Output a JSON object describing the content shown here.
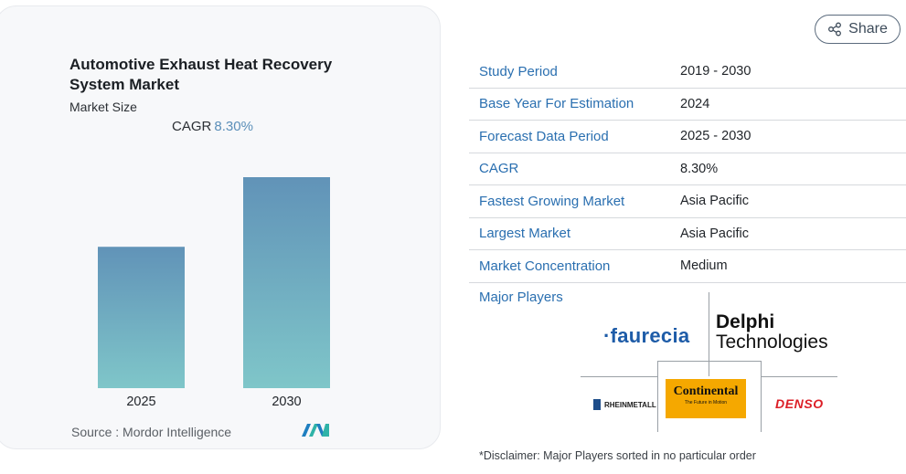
{
  "chart_title": "Automotive Exhaust Heat Recovery System Market",
  "chart_subtitle": "Market Size",
  "cagr_label": "CAGR",
  "cagr_value": "8.30%",
  "source_text": "Source :  Mordor Intelligence",
  "chart_data": {
    "type": "bar",
    "title": "Automotive Exhaust Heat Recovery System Market",
    "subtitle": "Market Size",
    "categories": [
      "2025",
      "2030"
    ],
    "values": [
      0.67,
      1.0
    ],
    "annotation": "CAGR 8.30%",
    "xlabel": "",
    "ylabel": "",
    "grid": false,
    "bar_color_top": "#6193b8",
    "bar_color_bottom": "#7fc6c9"
  },
  "share_label": "Share",
  "info_rows": [
    {
      "key": "Study Period",
      "value": "2019 - 2030"
    },
    {
      "key": "Base Year For Estimation",
      "value": "2024"
    },
    {
      "key": "Forecast Data Period",
      "value": "2025 - 2030"
    },
    {
      "key": "CAGR",
      "value": "8.30%"
    },
    {
      "key": "Fastest Growing Market",
      "value": "Asia Pacific"
    },
    {
      "key": "Largest Market",
      "value": "Asia Pacific"
    },
    {
      "key": "Market Concentration",
      "value": "Medium"
    }
  ],
  "major_players_label": "Major Players",
  "players": {
    "faurecia": "·faurecia",
    "delphi_line1": "Delphi",
    "delphi_line2": "Technologies",
    "rheinmetall": "RHEINMETALL",
    "continental_main": "Continental",
    "continental_tagline": "The Future in Motion",
    "denso": "DENSO"
  },
  "disclaimer": "*Disclaimer: Major Players sorted in no particular order",
  "colors": {
    "accent_blue": "#2a6fb0",
    "bar_top": "#6193b8",
    "bar_bottom": "#7fc6c9",
    "continental_yellow": "#f5a800",
    "denso_red": "#dc1e26",
    "faurecia_blue": "#1e5ca8"
  }
}
